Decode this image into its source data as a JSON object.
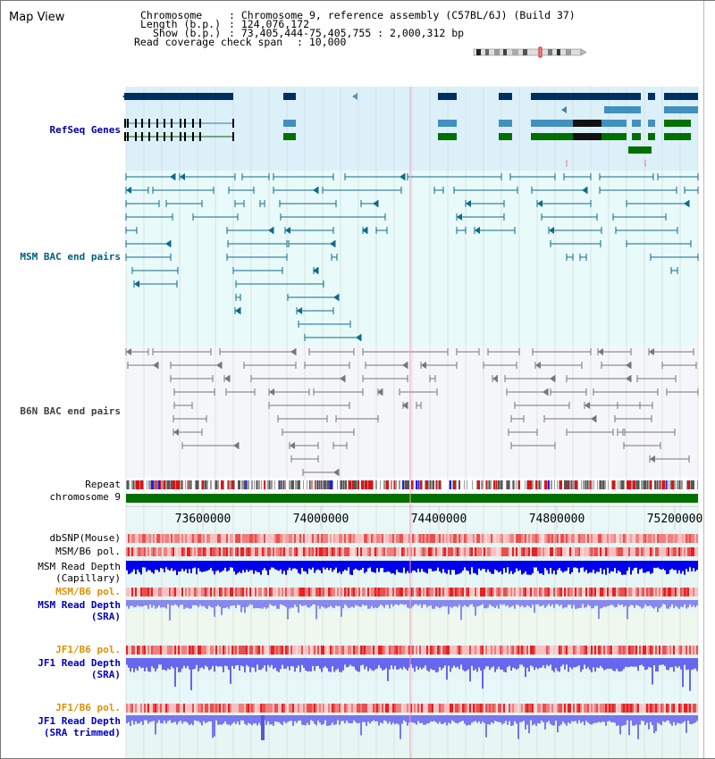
{
  "view_title": "Map View",
  "info": {
    "chromosome_label": "Chromosome",
    "chromosome_value": ": Chromosome 9, reference assembly (C57BL/6J) (Build 37)",
    "length_label": "Length (b.p.)",
    "length_value": ": 124,076,172",
    "show_label": "Show (b.p.)",
    "show_value": ": 73,405,444-75,405,755 : 2,000,312 bp",
    "coverage_label": "Read coverage check span",
    "coverage_value": ": 10,000"
  },
  "tracks": {
    "refseq": "RefSeq Genes",
    "msm_bac": "MSM BAC end pairs",
    "b6n_bac": "B6N BAC end pairs",
    "repeat": "Repeat",
    "chromosome": "chromosome 9",
    "dbsnp": "dbSNP(Mouse)",
    "msm_b6_pol_1": "MSM/B6 pol.",
    "msm_depth_cap_1": "MSM Read Depth",
    "msm_depth_cap_2": "(Capillary)",
    "msm_b6_pol_2": "MSM/B6 pol.",
    "msm_depth_sra_1": "MSM Read Depth",
    "msm_depth_sra_2": "(SRA)",
    "jf1_b6_pol_1": "JF1/B6 pol.",
    "jf1_depth_sra_1": "JF1 Read Depth",
    "jf1_depth_sra_2": "(SRA)",
    "jf1_b6_pol_2": "JF1/B6 pol.",
    "jf1_depth_trim_1": "JF1 Read Depth",
    "jf1_depth_trim_2": "(SRA trimmed)"
  },
  "axis": {
    "ticks": [
      "73600000",
      "74000000",
      "74400000",
      "74800000",
      "75200000"
    ]
  },
  "colors": {
    "refseq_label": "#0000a0",
    "msm_label": "#006080",
    "b6n_label": "#404040",
    "orange_label": "#e09000",
    "blue_label": "#0000c0",
    "gene_dark": "#003060",
    "gene_light": "#4090c0",
    "gene_green": "#007000",
    "chromosome_bar": "#007000",
    "depth_blue": "#0000ee",
    "depth_light": "#6666ee"
  },
  "icons": {
    "ideogram": "chromosome-ideogram-icon"
  }
}
